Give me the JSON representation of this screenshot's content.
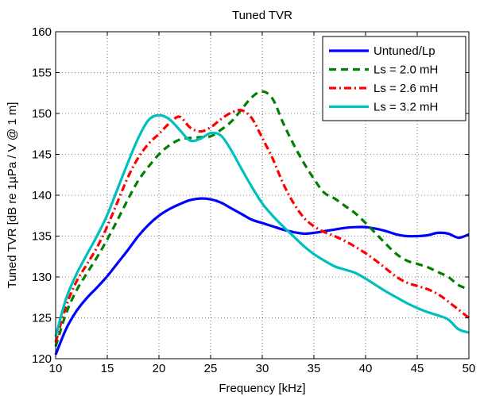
{
  "chart_data": {
    "type": "line",
    "title": "Tuned TVR",
    "xlabel": "Frequency [kHz]",
    "ylabel": "Tuned TVR [dB re 1µPa / V @ 1 m]",
    "xlim": [
      10,
      50
    ],
    "ylim": [
      120,
      160
    ],
    "xticks": [
      10,
      15,
      20,
      25,
      30,
      35,
      40,
      45,
      50
    ],
    "yticks": [
      120,
      125,
      130,
      135,
      140,
      145,
      150,
      155,
      160
    ],
    "grid": true,
    "legend_position": "top-right",
    "series": [
      {
        "name": "Untuned/Lp",
        "color": "#0000ff",
        "dash": "solid",
        "x": [
          10,
          11,
          12,
          13,
          14,
          15,
          16,
          17,
          18,
          19,
          20,
          21,
          22,
          23,
          24,
          25,
          26,
          27,
          28,
          29,
          30,
          31,
          32,
          33,
          34,
          35,
          36,
          37,
          38,
          39,
          40,
          41,
          42,
          43,
          44,
          45,
          46,
          47,
          48,
          49,
          50
        ],
        "y": [
          120.5,
          123.6,
          125.8,
          127.4,
          128.7,
          130.1,
          131.7,
          133.3,
          135.0,
          136.4,
          137.5,
          138.3,
          138.9,
          139.4,
          139.6,
          139.5,
          139.1,
          138.4,
          137.7,
          137.0,
          136.6,
          136.2,
          135.8,
          135.5,
          135.3,
          135.4,
          135.6,
          135.8,
          136.0,
          136.1,
          136.1,
          135.9,
          135.6,
          135.2,
          135.0,
          135.0,
          135.1,
          135.4,
          135.3,
          134.8,
          135.2
        ]
      },
      {
        "name": "Ls = 2.0 mH",
        "color": "#007f00",
        "dash": "dashed",
        "x": [
          10,
          11,
          12,
          13,
          14,
          15,
          16,
          17,
          18,
          19,
          20,
          21,
          22,
          23,
          24,
          25,
          26,
          27,
          28,
          29,
          30,
          31,
          32,
          33,
          34,
          35,
          36,
          37,
          38,
          39,
          40,
          41,
          42,
          43,
          44,
          45,
          46,
          47,
          48,
          49,
          50
        ],
        "y": [
          121.5,
          125.5,
          128.3,
          130.4,
          132.4,
          134.6,
          137.0,
          139.5,
          141.8,
          143.5,
          145.0,
          146.1,
          146.8,
          147.0,
          147.1,
          147.2,
          148.0,
          149.0,
          150.5,
          152.0,
          152.7,
          151.8,
          148.9,
          146.3,
          144.0,
          142.0,
          140.3,
          139.6,
          138.7,
          137.8,
          136.6,
          135.3,
          134.0,
          132.8,
          132.0,
          131.6,
          131.2,
          130.6,
          130.0,
          129.0,
          128.5
        ]
      },
      {
        "name": "Ls = 2.6 mH",
        "color": "#ff0000",
        "dash": "dashdot",
        "x": [
          10,
          11,
          12,
          13,
          14,
          15,
          16,
          17,
          18,
          19,
          20,
          21,
          22,
          23,
          24,
          25,
          26,
          27,
          28,
          29,
          30,
          31,
          32,
          33,
          34,
          35,
          36,
          37,
          38,
          39,
          40,
          41,
          42,
          43,
          44,
          45,
          46,
          47,
          48,
          49,
          50
        ],
        "y": [
          122.0,
          126.4,
          129.4,
          131.5,
          133.6,
          136.2,
          139.2,
          142.2,
          144.6,
          146.3,
          147.5,
          148.8,
          149.6,
          148.3,
          147.8,
          148.3,
          149.3,
          150.1,
          150.4,
          149.4,
          147.0,
          144.5,
          141.5,
          139.1,
          137.3,
          136.2,
          135.5,
          135.0,
          134.4,
          133.7,
          132.9,
          132.0,
          131.0,
          130.0,
          129.3,
          128.9,
          128.5,
          127.9,
          127.0,
          126.0,
          125.0
        ]
      },
      {
        "name": "Ls = 3.2 mH",
        "color": "#00bfbf",
        "dash": "solid",
        "x": [
          10,
          11,
          12,
          13,
          14,
          15,
          16,
          17,
          18,
          19,
          20,
          21,
          22,
          23,
          24,
          25,
          26,
          27,
          28,
          29,
          30,
          31,
          32,
          33,
          34,
          35,
          36,
          37,
          38,
          39,
          40,
          41,
          42,
          43,
          44,
          45,
          46,
          47,
          48,
          49,
          50
        ],
        "y": [
          122.7,
          127.3,
          130.3,
          132.7,
          135.0,
          137.6,
          140.8,
          144.0,
          147.0,
          149.2,
          149.8,
          149.3,
          148.0,
          146.7,
          146.9,
          147.6,
          147.3,
          145.5,
          143.2,
          141.0,
          139.0,
          137.5,
          136.2,
          135.0,
          133.8,
          132.8,
          132.0,
          131.3,
          130.9,
          130.5,
          129.8,
          129.0,
          128.2,
          127.5,
          126.8,
          126.2,
          125.7,
          125.3,
          124.8,
          123.6,
          123.2
        ]
      }
    ]
  }
}
